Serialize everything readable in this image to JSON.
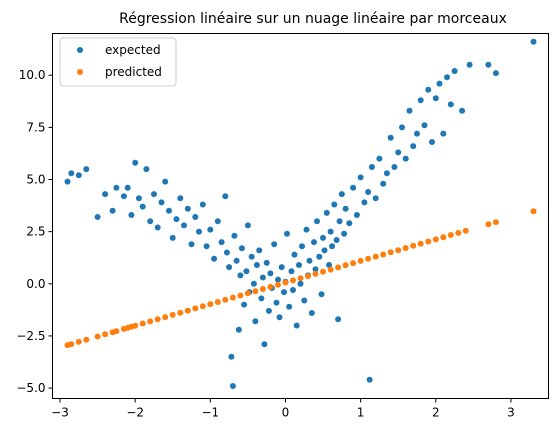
{
  "chart_data": {
    "type": "scatter",
    "title": "Régression linéaire sur un nuage linéaire par morceaux",
    "xlabel": "",
    "ylabel": "",
    "xlim": [
      -3.1,
      3.5
    ],
    "ylim": [
      -5.5,
      12.0
    ],
    "grid": false,
    "legend_position": "top-left",
    "x_ticks": [
      -3,
      -2,
      -1,
      0,
      1,
      2,
      3
    ],
    "x_tick_labels": [
      "−3",
      "−2",
      "−1",
      "0",
      "1",
      "2",
      "3"
    ],
    "y_ticks": [
      -5.0,
      -2.5,
      0.0,
      2.5,
      5.0,
      7.5,
      10.0
    ],
    "y_tick_labels": [
      "−5.0",
      "−2.5",
      "0.0",
      "2.5",
      "5.0",
      "7.5",
      "10.0"
    ],
    "series": [
      {
        "name": "expected",
        "color": "#1f77b4",
        "points": [
          [
            -2.9,
            4.9
          ],
          [
            -2.85,
            5.3
          ],
          [
            -2.75,
            5.2
          ],
          [
            -2.65,
            5.5
          ],
          [
            -2.5,
            3.2
          ],
          [
            -2.4,
            4.3
          ],
          [
            -2.3,
            3.5
          ],
          [
            -2.25,
            4.6
          ],
          [
            -2.15,
            4.2
          ],
          [
            -2.1,
            4.6
          ],
          [
            -2.05,
            3.3
          ],
          [
            -2.0,
            5.8
          ],
          [
            -1.95,
            4.1
          ],
          [
            -1.9,
            3.7
          ],
          [
            -1.85,
            5.5
          ],
          [
            -1.8,
            3.0
          ],
          [
            -1.75,
            4.3
          ],
          [
            -1.7,
            2.7
          ],
          [
            -1.65,
            3.9
          ],
          [
            -1.6,
            4.9
          ],
          [
            -1.55,
            3.5
          ],
          [
            -1.5,
            2.2
          ],
          [
            -1.45,
            3.1
          ],
          [
            -1.4,
            4.1
          ],
          [
            -1.35,
            2.8
          ],
          [
            -1.3,
            3.6
          ],
          [
            -1.25,
            1.9
          ],
          [
            -1.2,
            3.2
          ],
          [
            -1.15,
            2.5
          ],
          [
            -1.1,
            3.8
          ],
          [
            -1.05,
            1.8
          ],
          [
            -1.0,
            2.6
          ],
          [
            -0.95,
            1.2
          ],
          [
            -0.9,
            3.0
          ],
          [
            -0.85,
            2.0
          ],
          [
            -0.8,
            4.2
          ],
          [
            -0.78,
            1.5
          ],
          [
            -0.75,
            0.8
          ],
          [
            -0.72,
            -3.5
          ],
          [
            -0.7,
            -4.9
          ],
          [
            -0.68,
            2.3
          ],
          [
            -0.65,
            1.1
          ],
          [
            -0.62,
            -2.2
          ],
          [
            -0.6,
            0.4
          ],
          [
            -0.58,
            1.7
          ],
          [
            -0.55,
            -1.0
          ],
          [
            -0.52,
            0.6
          ],
          [
            -0.5,
            2.8
          ],
          [
            -0.48,
            -0.4
          ],
          [
            -0.45,
            1.3
          ],
          [
            -0.42,
            0.0
          ],
          [
            -0.4,
            -1.8
          ],
          [
            -0.38,
            0.9
          ],
          [
            -0.35,
            1.6
          ],
          [
            -0.32,
            -0.7
          ],
          [
            -0.3,
            0.3
          ],
          [
            -0.28,
            -2.9
          ],
          [
            -0.25,
            1.0
          ],
          [
            -0.22,
            -1.3
          ],
          [
            -0.2,
            0.5
          ],
          [
            -0.18,
            -0.2
          ],
          [
            -0.15,
            1.9
          ],
          [
            -0.12,
            -0.9
          ],
          [
            -0.1,
            0.2
          ],
          [
            -0.08,
            -1.6
          ],
          [
            -0.05,
            0.8
          ],
          [
            -0.02,
            -0.4
          ],
          [
            0.0,
            0.1
          ],
          [
            0.02,
            2.4
          ],
          [
            0.05,
            -1.1
          ],
          [
            0.08,
            0.6
          ],
          [
            0.1,
            -0.3
          ],
          [
            0.12,
            1.4
          ],
          [
            0.15,
            -2.0
          ],
          [
            0.18,
            0.9
          ],
          [
            0.2,
            0.0
          ],
          [
            0.22,
            1.8
          ],
          [
            0.25,
            -0.8
          ],
          [
            0.28,
            2.6
          ],
          [
            0.3,
            0.4
          ],
          [
            0.32,
            1.1
          ],
          [
            0.35,
            -1.4
          ],
          [
            0.38,
            2.0
          ],
          [
            0.4,
            0.7
          ],
          [
            0.42,
            3.0
          ],
          [
            0.45,
            1.3
          ],
          [
            0.48,
            -0.5
          ],
          [
            0.5,
            2.2
          ],
          [
            0.52,
            1.6
          ],
          [
            0.55,
            3.4
          ],
          [
            0.58,
            0.9
          ],
          [
            0.6,
            2.5
          ],
          [
            0.62,
            1.8
          ],
          [
            0.65,
            3.8
          ],
          [
            0.68,
            2.1
          ],
          [
            0.7,
            -1.7
          ],
          [
            0.72,
            3.0
          ],
          [
            0.75,
            4.3
          ],
          [
            0.78,
            2.4
          ],
          [
            0.8,
            3.6
          ],
          [
            0.85,
            2.9
          ],
          [
            0.9,
            4.6
          ],
          [
            0.95,
            3.3
          ],
          [
            1.0,
            5.1
          ],
          [
            1.05,
            3.9
          ],
          [
            1.1,
            4.4
          ],
          [
            1.12,
            -4.6
          ],
          [
            1.15,
            5.6
          ],
          [
            1.2,
            4.1
          ],
          [
            1.25,
            6.0
          ],
          [
            1.3,
            4.8
          ],
          [
            1.35,
            5.3
          ],
          [
            1.4,
            7.0
          ],
          [
            1.45,
            5.6
          ],
          [
            1.5,
            6.3
          ],
          [
            1.55,
            7.5
          ],
          [
            1.6,
            6.0
          ],
          [
            1.65,
            8.3
          ],
          [
            1.7,
            6.6
          ],
          [
            1.75,
            7.2
          ],
          [
            1.8,
            8.8
          ],
          [
            1.85,
            7.6
          ],
          [
            1.9,
            9.3
          ],
          [
            1.95,
            6.8
          ],
          [
            2.0,
            8.9
          ],
          [
            2.05,
            9.6
          ],
          [
            2.1,
            7.2
          ],
          [
            2.15,
            9.9
          ],
          [
            2.2,
            8.6
          ],
          [
            2.25,
            10.2
          ],
          [
            2.35,
            8.3
          ],
          [
            2.45,
            10.5
          ],
          [
            2.7,
            10.5
          ],
          [
            2.8,
            10.1
          ],
          [
            3.3,
            11.6
          ]
        ]
      },
      {
        "name": "predicted",
        "color": "#ff7f0e",
        "slope": 1.035,
        "intercept": 0.06,
        "x": [
          -2.9,
          -2.85,
          -2.75,
          -2.65,
          -2.5,
          -2.4,
          -2.3,
          -2.25,
          -2.15,
          -2.1,
          -2.05,
          -2.0,
          -1.9,
          -1.8,
          -1.7,
          -1.6,
          -1.5,
          -1.4,
          -1.3,
          -1.2,
          -1.1,
          -1.0,
          -0.9,
          -0.8,
          -0.7,
          -0.6,
          -0.5,
          -0.4,
          -0.3,
          -0.2,
          -0.1,
          0.0,
          0.1,
          0.2,
          0.3,
          0.4,
          0.5,
          0.6,
          0.7,
          0.8,
          0.9,
          1.0,
          1.1,
          1.2,
          1.3,
          1.4,
          1.5,
          1.6,
          1.7,
          1.8,
          1.9,
          2.0,
          2.1,
          2.2,
          2.3,
          2.4,
          2.7,
          2.8,
          3.3
        ]
      }
    ]
  }
}
